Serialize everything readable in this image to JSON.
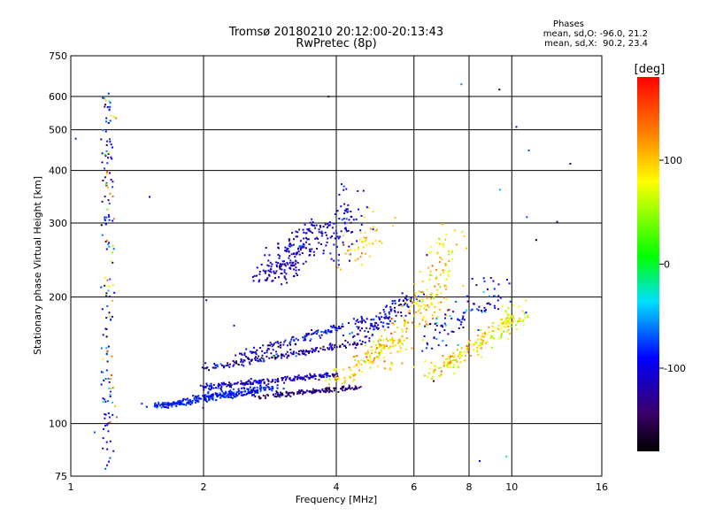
{
  "header": {
    "title": "Tromsø 20180210 20:12:00-20:13:43",
    "subtitle": "RwPretec (8p)",
    "phases_label": "Phases",
    "stat_o": "mean, sd,O: -96.0, 21.2",
    "stat_x": "mean, sd,X:  90.2, 23.4"
  },
  "chart_data": {
    "type": "scatter",
    "xlabel": "Frequency [MHz]",
    "ylabel": "Stationary phase Virtual Height [km]",
    "x_scale": "log",
    "y_scale": "log",
    "xlim": [
      1,
      16
    ],
    "ylim": [
      75,
      750
    ],
    "x_ticks": [
      1,
      2,
      4,
      6,
      8,
      10,
      16
    ],
    "x_tick_labels": [
      "1",
      "2",
      "4",
      "6",
      "8",
      "10",
      "16"
    ],
    "x_gridlines": [
      2,
      4,
      6,
      8,
      10
    ],
    "y_ticks": [
      75,
      100,
      200,
      300,
      400,
      500,
      600,
      750
    ],
    "y_tick_labels": [
      "75",
      "100",
      "200",
      "300",
      "400",
      "500",
      "600",
      "750"
    ],
    "y_gridlines": [
      100,
      200,
      300,
      400,
      500,
      600
    ],
    "grid": true,
    "colorbar": {
      "label": "[deg]",
      "range": [
        -180,
        180
      ],
      "ticks": [
        100,
        0,
        -100
      ],
      "tick_labels": [
        "100",
        "0",
        "-100"
      ]
    },
    "point_groups": [
      {
        "x": [
          1.55,
          2.9
        ],
        "y": [
          110,
          122
        ],
        "n": 320,
        "phase": -85,
        "sd": 12,
        "jx": 0.03,
        "jy": 0.025
      },
      {
        "x": [
          2.0,
          4.0
        ],
        "y": [
          122,
          131
        ],
        "n": 200,
        "phase": -110,
        "sd": 18,
        "jx": 0.03,
        "jy": 0.02
      },
      {
        "x": [
          2.7,
          4.5
        ],
        "y": [
          116,
          122
        ],
        "n": 140,
        "phase": -135,
        "sd": 20,
        "jx": 0.02,
        "jy": 0.015
      },
      {
        "x": [
          2.0,
          4.5
        ],
        "y": [
          135,
          156
        ],
        "n": 170,
        "phase": -120,
        "sd": 25,
        "jx": 0.03,
        "jy": 0.02
      },
      {
        "x": [
          2.4,
          4.8
        ],
        "y": [
          145,
          178
        ],
        "n": 140,
        "phase": -105,
        "sd": 25,
        "jx": 0.03,
        "jy": 0.02
      },
      {
        "x": [
          2.8,
          3.7
        ],
        "y": [
          218,
          300
        ],
        "n": 220,
        "phase": -110,
        "sd": 15,
        "jx": 0.06,
        "jy": 0.05
      },
      {
        "x": [
          3.9,
          4.5
        ],
        "y": [
          255,
          340
        ],
        "n": 70,
        "phase": -100,
        "sd": 15,
        "jx": 0.04,
        "jy": 0.06
      },
      {
        "x": [
          4.3,
          5.0
        ],
        "y": [
          245,
          295
        ],
        "n": 45,
        "phase": 95,
        "sd": 15,
        "jx": 0.05,
        "jy": 0.06
      },
      {
        "x": [
          4.0,
          5.5
        ],
        "y": [
          125,
          160
        ],
        "n": 120,
        "phase": 95,
        "sd": 25,
        "jx": 0.04,
        "jy": 0.05
      },
      {
        "x": [
          4.5,
          6.0
        ],
        "y": [
          160,
          200
        ],
        "n": 120,
        "phase": -100,
        "sd": 25,
        "jx": 0.04,
        "jy": 0.05
      },
      {
        "x": [
          5.2,
          6.3
        ],
        "y": [
          140,
          200
        ],
        "n": 90,
        "phase": 100,
        "sd": 25,
        "jx": 0.04,
        "jy": 0.05
      },
      {
        "x": [
          6.3,
          7.3
        ],
        "y": [
          180,
          280
        ],
        "n": 100,
        "phase": 95,
        "sd": 25,
        "jx": 0.05,
        "jy": 0.06
      },
      {
        "x": [
          6.5,
          10.5
        ],
        "y": [
          130,
          180
        ],
        "n": 160,
        "phase": 85,
        "sd": 25,
        "jx": 0.04,
        "jy": 0.05
      },
      {
        "x": [
          6.5,
          9.5
        ],
        "y": [
          160,
          210
        ],
        "n": 90,
        "phase": -95,
        "sd": 25,
        "jx": 0.04,
        "jy": 0.05
      },
      {
        "x": [
          9.0,
          11.0
        ],
        "y": [
          165,
          190
        ],
        "n": 40,
        "phase": 75,
        "sd": 20,
        "jx": 0.03,
        "jy": 0.03
      },
      {
        "x": [
          1.18,
          1.24
        ],
        "y": [
          78,
          620
        ],
        "n": 130,
        "phase": -95,
        "sd": 35,
        "jx": 0.01,
        "jy": 0.09
      },
      {
        "x": [
          1.2,
          1.26
        ],
        "y": [
          100,
          600
        ],
        "n": 35,
        "phase": 100,
        "sd": 30,
        "jx": 0.01,
        "jy": 0.09
      },
      {
        "x": [
          1.0,
          16.0
        ],
        "y": [
          80,
          650
        ],
        "n": 35,
        "phase": -80,
        "sd": 60,
        "jx": 0.1,
        "jy": 0.1
      }
    ]
  }
}
